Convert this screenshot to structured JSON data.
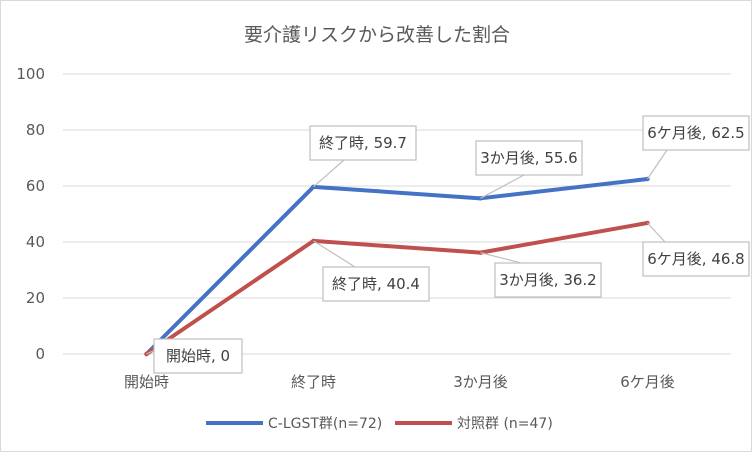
{
  "chart_data": {
    "type": "line",
    "title": "要介護リスクから改善した割合",
    "categories": [
      "開始時",
      "終了時",
      "3か月後",
      "6ケ月後"
    ],
    "ylim": [
      0,
      100
    ],
    "yticks": [
      0,
      20,
      40,
      60,
      80,
      100
    ],
    "grid": true,
    "legend_position": "bottom",
    "series": [
      {
        "name": "C-LGST群(n=72)",
        "color": "#4472c4",
        "values": [
          0,
          59.7,
          55.6,
          62.5
        ],
        "data_labels": [
          "",
          "終了時, 59.7",
          "3か月後, 55.6",
          "6ケ月後, 62.5"
        ]
      },
      {
        "name": "対照群 (n=47)",
        "color": "#c0504d",
        "values": [
          0,
          40.4,
          36.2,
          46.8
        ],
        "data_labels": [
          "開始時, 0",
          "終了時, 40.4",
          "3か月後, 36.2",
          "6ケ月後, 46.8"
        ]
      }
    ]
  }
}
